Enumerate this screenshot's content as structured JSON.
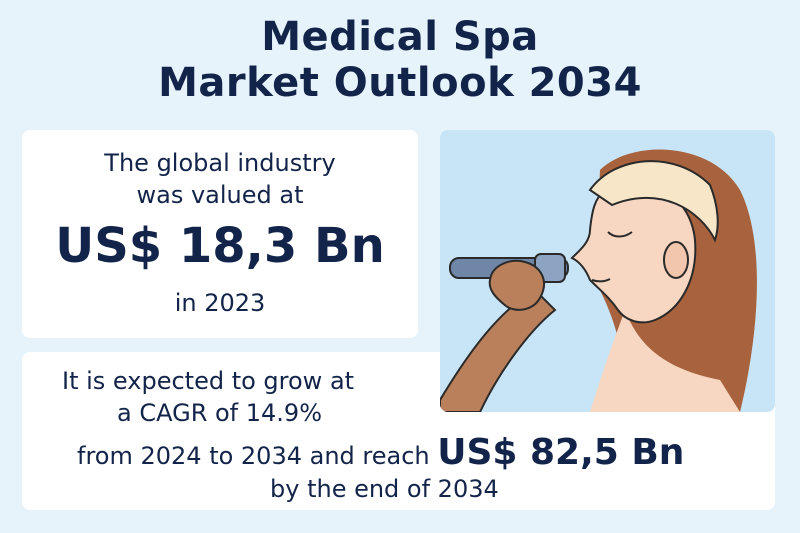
{
  "title": {
    "line1": "Medical Spa",
    "line2": "Market Outlook 2034"
  },
  "valuation": {
    "line1": "The global industry",
    "line2": "was valued at",
    "amount": "US$ 18,3 Bn",
    "year": "in 2023"
  },
  "forecast": {
    "line1": "It is expected to grow at",
    "line2": "a CAGR of 14.9%",
    "line3": "from 2024 to 2034 and reach",
    "amount": "US$ 82,5 Bn",
    "line4": "by the end of 2034"
  },
  "colors": {
    "background": "#e6f3fb",
    "text": "#13244a",
    "card": "#ffffff",
    "illustration_bg": "#c8e5f7"
  }
}
